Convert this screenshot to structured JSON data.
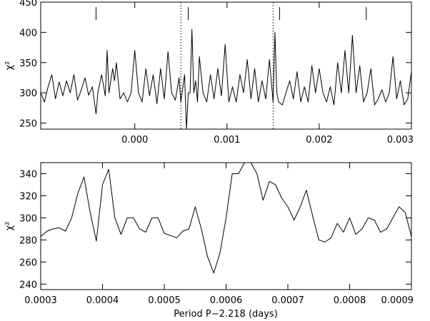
{
  "chart_data": [
    {
      "type": "line",
      "title": "",
      "xlabel": "",
      "ylabel": "χ²",
      "xlim": [
        -0.00102,
        0.003
      ],
      "ylim": [
        240,
        450
      ],
      "x_ticks": [
        0.0,
        0.001,
        0.002,
        0.003
      ],
      "x_tick_labels": [
        "0.000",
        "0.001",
        "0.002",
        "0.003"
      ],
      "y_ticks": [
        250,
        300,
        350,
        400,
        450
      ],
      "y_tick_labels": [
        "250",
        "300",
        "350",
        "400",
        "450"
      ],
      "grid": false,
      "vertical_lines_dotted": [
        0.0005,
        0.0015
      ],
      "marker_ticks_x": [
        -0.00042,
        0.00058,
        0.00157,
        0.00251
      ],
      "series": [
        {
          "x": [
            -0.00102,
            -0.00098,
            -0.00094,
            -0.0009,
            -0.00086,
            -0.00082,
            -0.00078,
            -0.00074,
            -0.0007,
            -0.00066,
            -0.00062,
            -0.00058,
            -0.00054,
            -0.0005,
            -0.00046,
            -0.00042,
            -0.0004,
            -0.00036,
            -0.00032,
            -0.0003,
            -0.00028,
            -0.00024,
            -0.00022,
            -0.0002,
            -0.00016,
            -0.00012,
            -8e-05,
            -4e-05,
            0.0,
            4e-05,
            8e-05,
            0.00012,
            0.00016,
            0.0002,
            0.00024,
            0.00028,
            0.00032,
            0.00036,
            0.0004,
            0.00044,
            0.00048,
            0.0005,
            0.00054,
            0.00056,
            0.00058,
            0.0006,
            0.00062,
            0.00064,
            0.00066,
            0.00068,
            0.0007,
            0.00074,
            0.00078,
            0.00082,
            0.00086,
            0.0009,
            0.00094,
            0.00098,
            0.00102,
            0.00106,
            0.0011,
            0.00114,
            0.00118,
            0.00122,
            0.00126,
            0.0013,
            0.00134,
            0.00138,
            0.00142,
            0.00146,
            0.0015,
            0.00152,
            0.00154,
            0.00156,
            0.0016,
            0.00164,
            0.00168,
            0.00172,
            0.00176,
            0.0018,
            0.00184,
            0.00188,
            0.00192,
            0.00196,
            0.002,
            0.00204,
            0.00208,
            0.00212,
            0.00216,
            0.0022,
            0.00224,
            0.00228,
            0.00232,
            0.00236,
            0.0024,
            0.00244,
            0.00248,
            0.00252,
            0.00256,
            0.0026,
            0.00264,
            0.00268,
            0.00272,
            0.00276,
            0.0028,
            0.00284,
            0.00288,
            0.00292,
            0.00296,
            0.003
          ],
          "y": [
            300,
            285,
            310,
            330,
            290,
            318,
            295,
            320,
            300,
            330,
            288,
            305,
            325,
            296,
            310,
            265,
            300,
            330,
            295,
            370,
            300,
            340,
            320,
            350,
            290,
            300,
            285,
            300,
            370,
            300,
            285,
            340,
            295,
            330,
            282,
            340,
            290,
            368,
            300,
            288,
            325,
            285,
            330,
            240,
            300,
            300,
            405,
            300,
            320,
            285,
            360,
            300,
            285,
            330,
            290,
            340,
            295,
            380,
            285,
            310,
            285,
            330,
            300,
            355,
            290,
            340,
            285,
            320,
            290,
            355,
            285,
            400,
            300,
            285,
            280,
            300,
            320,
            290,
            335,
            285,
            310,
            285,
            345,
            300,
            340,
            300,
            285,
            310,
            280,
            350,
            300,
            370,
            300,
            395,
            300,
            345,
            285,
            300,
            340,
            280,
            290,
            305,
            285,
            300,
            360,
            290,
            320,
            280,
            290,
            335
          ]
        }
      ]
    },
    {
      "type": "line",
      "title": "",
      "xlabel": "Period P−2.218 (days)",
      "ylabel": "χ²",
      "xlim": [
        0.0003,
        0.0009
      ],
      "ylim": [
        235,
        350
      ],
      "x_ticks": [
        0.0003,
        0.0004,
        0.0005,
        0.0006,
        0.0007,
        0.0008,
        0.0009
      ],
      "x_tick_labels": [
        "0.0003",
        "0.0004",
        "0.0005",
        "0.0006",
        "0.0007",
        "0.0008",
        "0.0009"
      ],
      "y_ticks": [
        240,
        260,
        280,
        300,
        320,
        340
      ],
      "y_tick_labels": [
        "240",
        "260",
        "280",
        "300",
        "320",
        "340"
      ],
      "grid": false,
      "series": [
        {
          "x": [
            0.0003,
            0.00031,
            0.00032,
            0.00033,
            0.00034,
            0.00035,
            0.00036,
            0.00037,
            0.00038,
            0.00039,
            0.0004,
            0.00041,
            0.00042,
            0.00043,
            0.00044,
            0.00045,
            0.00046,
            0.00047,
            0.00048,
            0.00049,
            0.0005,
            0.00051,
            0.00052,
            0.00053,
            0.00054,
            0.00055,
            0.00056,
            0.00057,
            0.00058,
            0.00059,
            0.0006,
            0.00061,
            0.00062,
            0.00063,
            0.00064,
            0.00065,
            0.00066,
            0.00067,
            0.00068,
            0.00069,
            0.0007,
            0.00071,
            0.00072,
            0.00073,
            0.00074,
            0.00075,
            0.00076,
            0.00077,
            0.00078,
            0.00079,
            0.0008,
            0.00081,
            0.00082,
            0.00083,
            0.00084,
            0.00085,
            0.00086,
            0.00087,
            0.00088,
            0.00089,
            0.0009
          ],
          "y": [
            283,
            288,
            290,
            291,
            288,
            300,
            322,
            337,
            305,
            279,
            330,
            344,
            300,
            285,
            300,
            300,
            290,
            287,
            300,
            300,
            286,
            284,
            282,
            288,
            290,
            310,
            290,
            265,
            250,
            268,
            300,
            340,
            340,
            350,
            350,
            340,
            316,
            333,
            330,
            318,
            310,
            298,
            310,
            325,
            302,
            280,
            278,
            282,
            295,
            287,
            300,
            285,
            290,
            300,
            298,
            287,
            290,
            300,
            310,
            305,
            283
          ]
        }
      ]
    }
  ]
}
